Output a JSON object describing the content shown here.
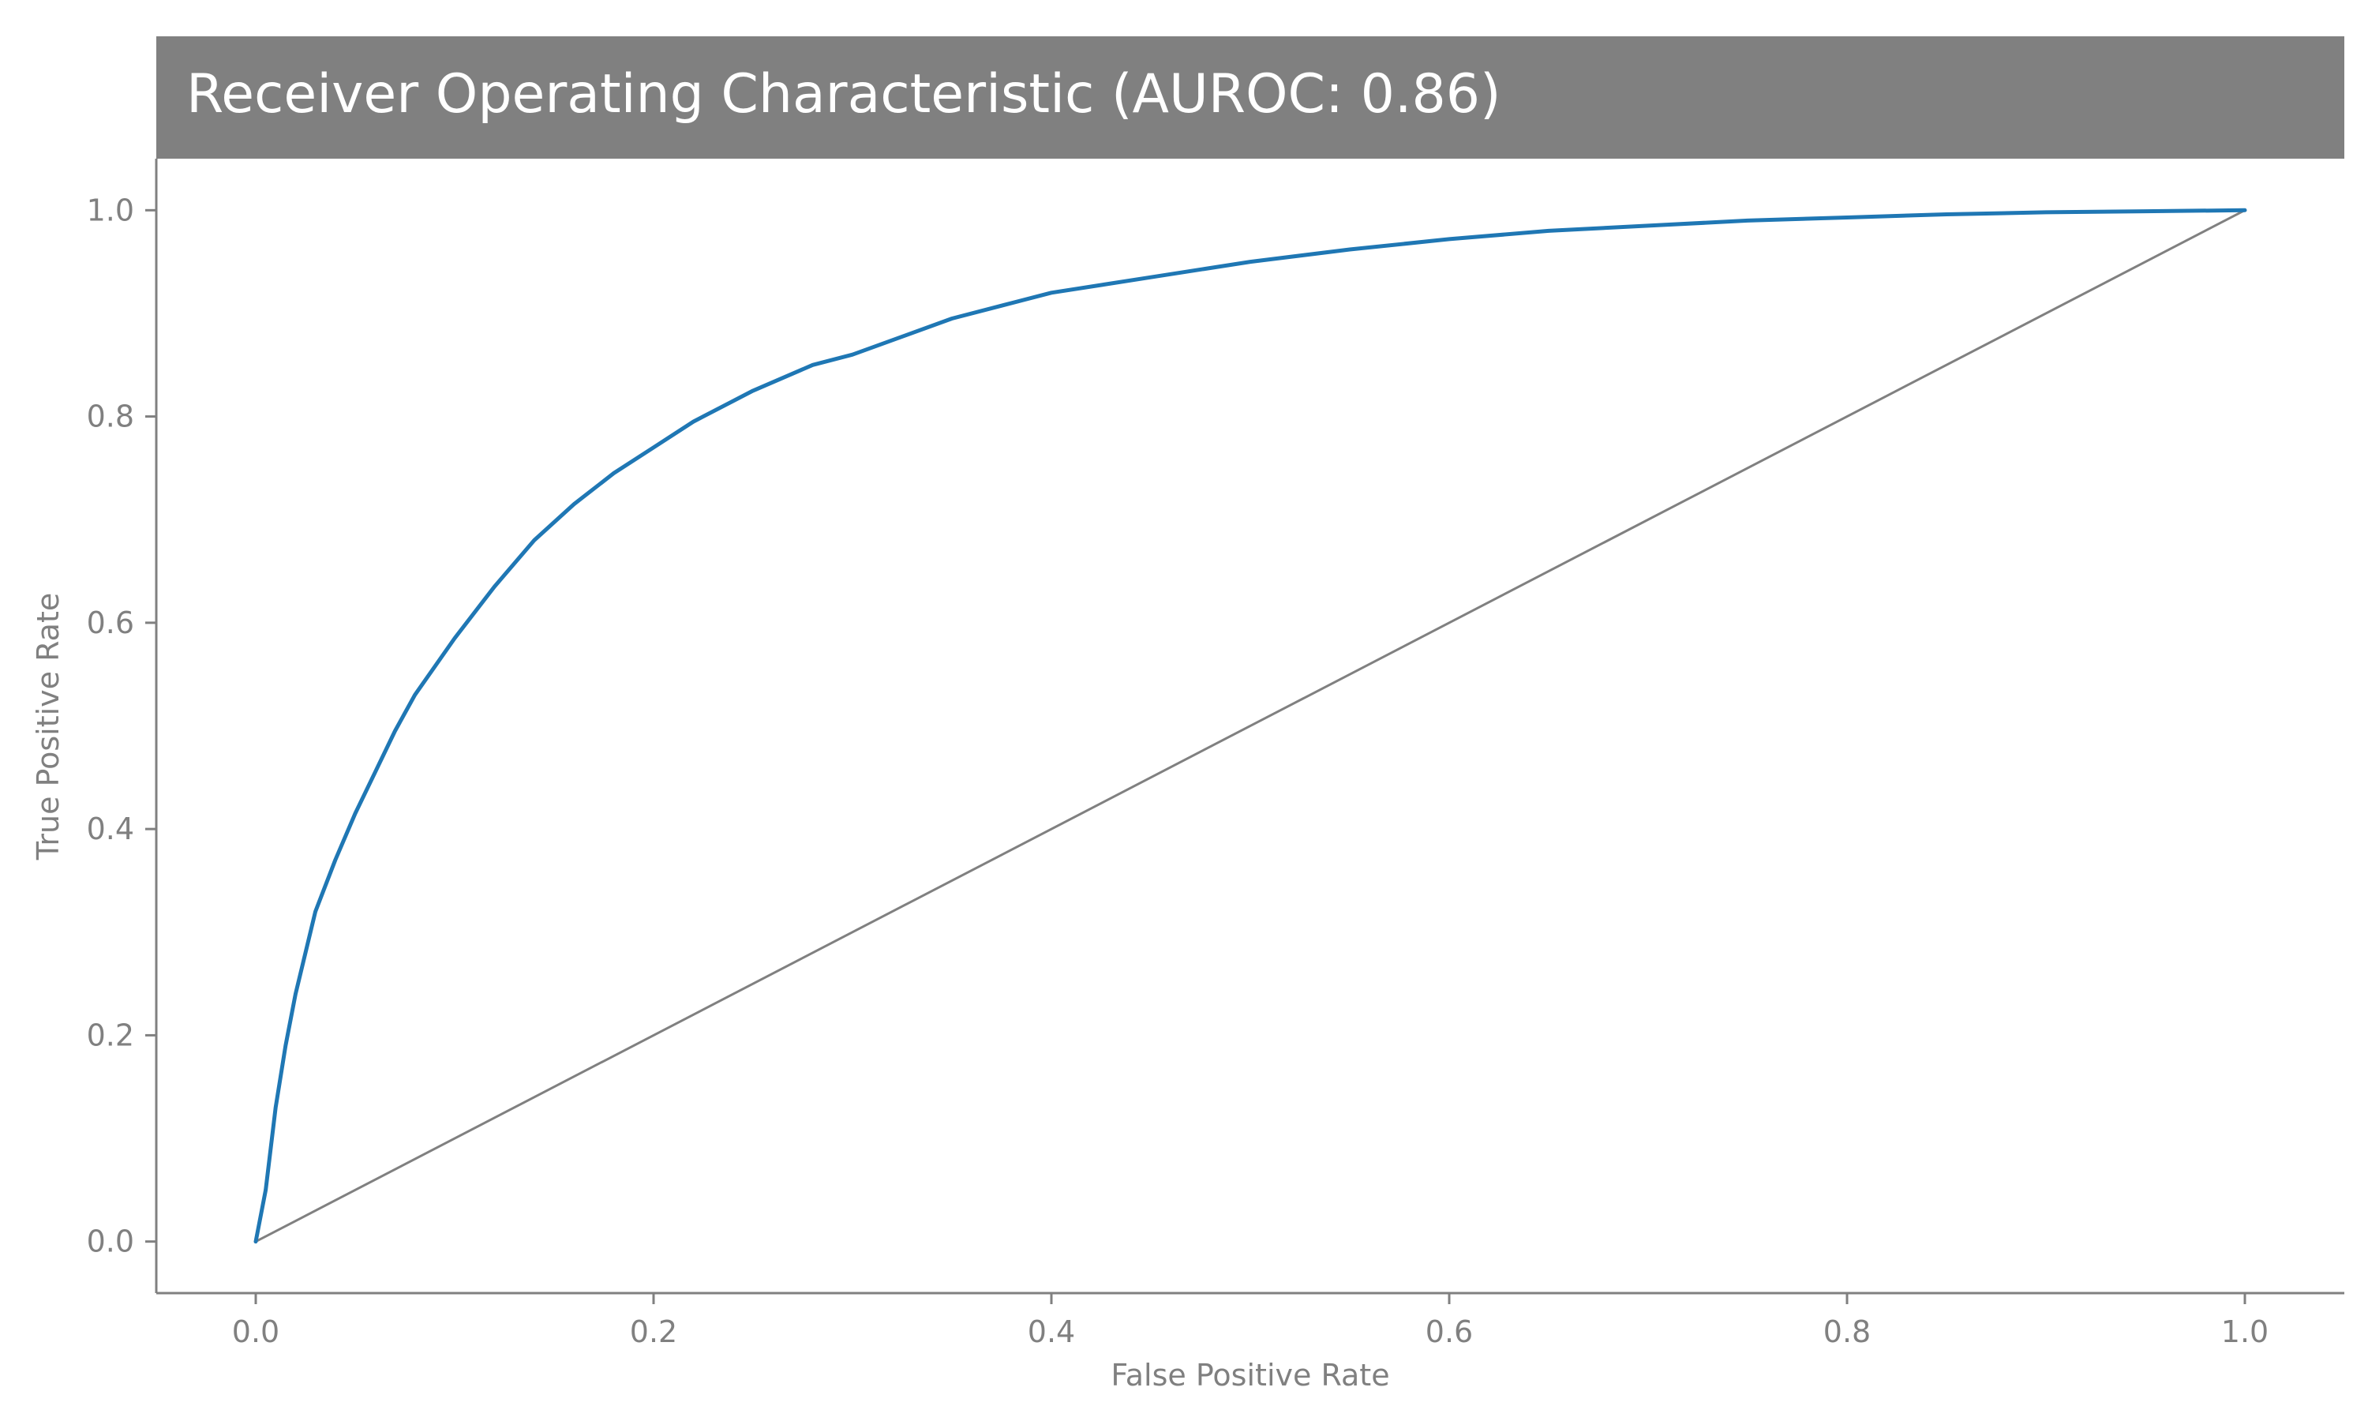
{
  "chart_data": {
    "type": "line",
    "title": "Receiver Operating Characteristic (AUROC: 0.86)",
    "xlabel": "False Positive Rate",
    "ylabel": "True Positive Rate",
    "xlim": [
      -0.05,
      1.05
    ],
    "ylim": [
      -0.05,
      1.05
    ],
    "xticks": [
      0.0,
      0.2,
      0.4,
      0.6,
      0.8,
      1.0
    ],
    "yticks": [
      0.0,
      0.2,
      0.4,
      0.6,
      0.8,
      1.0
    ],
    "x_tick_labels": [
      "0.0",
      "0.2",
      "0.4",
      "0.6",
      "0.8",
      "1.0"
    ],
    "y_tick_labels": [
      "0.0",
      "0.2",
      "0.4",
      "0.6",
      "0.8",
      "1.0"
    ],
    "grid": false,
    "series": [
      {
        "color": "#1f77b4",
        "x": [
          0.0,
          0.005,
          0.01,
          0.015,
          0.02,
          0.03,
          0.04,
          0.05,
          0.06,
          0.07,
          0.08,
          0.1,
          0.12,
          0.14,
          0.16,
          0.18,
          0.2,
          0.22,
          0.25,
          0.28,
          0.3,
          0.35,
          0.4,
          0.45,
          0.5,
          0.55,
          0.6,
          0.65,
          0.7,
          0.75,
          0.8,
          0.85,
          0.9,
          0.95,
          1.0
        ],
        "y": [
          0.0,
          0.05,
          0.13,
          0.19,
          0.24,
          0.32,
          0.37,
          0.415,
          0.455,
          0.495,
          0.53,
          0.585,
          0.635,
          0.68,
          0.715,
          0.745,
          0.77,
          0.795,
          0.825,
          0.85,
          0.86,
          0.895,
          0.92,
          0.935,
          0.95,
          0.962,
          0.972,
          0.98,
          0.985,
          0.99,
          0.993,
          0.996,
          0.998,
          0.999,
          1.0
        ]
      },
      {
        "color": "#808080",
        "x": [
          0.0,
          1.0
        ],
        "y": [
          0.0,
          1.0
        ]
      }
    ]
  }
}
